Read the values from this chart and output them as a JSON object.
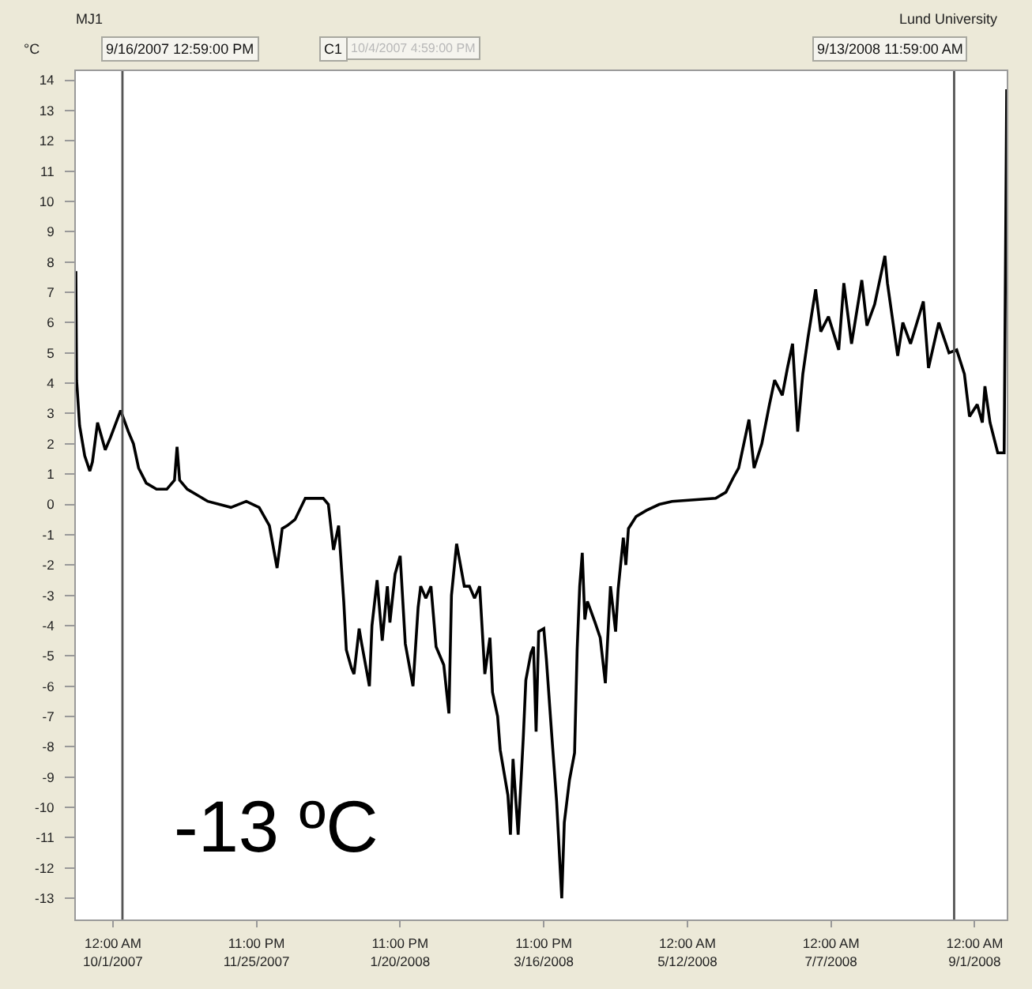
{
  "chart_data": {
    "type": "line",
    "title": "MJ1",
    "ylabel": "°C",
    "annotations": [
      "Lund University",
      "9/16/2007 12:59:00 PM",
      "C1",
      "10/4/2007 4:59:00 PM",
      "9/13/2008 11:59:00 AM",
      "-13 ºC"
    ],
    "x": [
      "2007-09-16T12:59",
      "2007-09-16T20:00",
      "2007-09-18",
      "2007-09-20",
      "2007-09-22",
      "2007-09-23",
      "2007-09-25",
      "2007-09-28",
      "2007-09-30",
      "2007-10-04",
      "2007-10-07",
      "2007-10-09",
      "2007-10-11",
      "2007-10-14",
      "2007-10-18",
      "2007-10-22",
      "2007-10-25",
      "2007-10-26",
      "2007-10-27",
      "2007-10-30",
      "2007-11-07",
      "2007-11-16",
      "2007-11-22",
      "2007-11-27",
      "2007-12-01",
      "2007-12-04",
      "2007-12-06",
      "2007-12-08",
      "2007-12-11",
      "2007-12-15",
      "2007-12-22",
      "2007-12-24",
      "2007-12-26",
      "2007-12-28",
      "2007-12-30",
      "2007-12-31",
      "2008-01-02",
      "2008-01-03",
      "2008-01-05",
      "2008-01-06",
      "2008-01-09",
      "2008-01-10",
      "2008-01-12",
      "2008-01-14",
      "2008-01-16",
      "2008-01-17",
      "2008-01-19",
      "2008-01-21",
      "2008-01-23",
      "2008-01-26",
      "2008-01-28",
      "2008-01-29",
      "2008-01-31",
      "2008-02-02",
      "2008-02-04",
      "2008-02-07",
      "2008-02-09",
      "2008-02-10",
      "2008-02-12",
      "2008-02-15",
      "2008-02-17",
      "2008-02-19",
      "2008-02-21",
      "2008-02-23",
      "2008-02-25",
      "2008-02-26",
      "2008-02-28",
      "2008-02-29",
      "2008-03-03",
      "2008-03-04",
      "2008-03-05",
      "2008-03-07",
      "2008-03-09",
      "2008-03-10",
      "2008-03-12",
      "2008-03-13",
      "2008-03-14",
      "2008-03-15",
      "2008-03-17",
      "2008-03-18",
      "2008-03-20",
      "2008-03-22",
      "2008-03-24",
      "2008-03-25",
      "2008-03-27",
      "2008-03-29",
      "2008-03-30",
      "2008-03-31",
      "2008-04-01",
      "2008-04-02",
      "2008-04-03",
      "2008-04-06",
      "2008-04-08",
      "2008-04-10",
      "2008-04-12",
      "2008-04-14",
      "2008-04-15",
      "2008-04-17",
      "2008-04-18",
      "2008-04-19",
      "2008-04-22",
      "2008-04-26",
      "2008-05-01",
      "2008-05-06",
      "2008-05-23",
      "2008-05-27",
      "2008-05-30",
      "2008-06-01",
      "2008-06-05",
      "2008-06-07",
      "2008-06-10",
      "2008-06-13",
      "2008-06-15",
      "2008-06-18",
      "2008-06-20",
      "2008-06-22",
      "2008-06-24",
      "2008-06-26",
      "2008-06-28",
      "2008-07-01",
      "2008-07-03",
      "2008-07-06",
      "2008-07-10",
      "2008-07-12",
      "2008-07-15",
      "2008-07-19",
      "2008-07-21",
      "2008-07-24",
      "2008-07-28",
      "2008-07-29",
      "2008-08-02",
      "2008-08-04",
      "2008-08-07",
      "2008-08-12",
      "2008-08-14",
      "2008-08-18",
      "2008-08-22",
      "2008-08-25",
      "2008-08-28",
      "2008-08-30",
      "2008-09-02",
      "2008-09-04",
      "2008-09-05",
      "2008-09-07",
      "2008-09-10",
      "2008-09-12T12:00",
      "2008-09-13T11:59"
    ],
    "series": [
      {
        "color": "#000000",
        "values": [
          7.7,
          4.1,
          2.6,
          1.6,
          1.1,
          1.4,
          2.7,
          1.8,
          2.2,
          3.1,
          2.4,
          2.0,
          1.2,
          0.7,
          0.5,
          0.5,
          0.8,
          1.9,
          0.8,
          0.5,
          0.1,
          -0.1,
          0.1,
          -0.1,
          -0.7,
          -2.1,
          -0.8,
          -0.7,
          -0.5,
          0.2,
          0.2,
          0.0,
          -1.5,
          -0.7,
          -3.2,
          -4.8,
          -5.4,
          -5.6,
          -4.1,
          -4.6,
          -6.0,
          -4.0,
          -2.5,
          -4.5,
          -2.7,
          -3.9,
          -2.3,
          -1.7,
          -4.6,
          -6.0,
          -3.4,
          -2.7,
          -3.1,
          -2.7,
          -4.7,
          -5.3,
          -6.9,
          -3.0,
          -1.3,
          -2.7,
          -2.7,
          -3.1,
          -2.7,
          -5.6,
          -4.4,
          -6.2,
          -7.0,
          -8.1,
          -9.6,
          -10.9,
          -8.4,
          -10.9,
          -7.7,
          -5.8,
          -4.9,
          -4.7,
          -7.5,
          -4.2,
          -4.1,
          -5.1,
          -7.5,
          -9.8,
          -13.0,
          -10.5,
          -9.1,
          -8.2,
          -4.8,
          -2.7,
          -1.6,
          -3.8,
          -3.2,
          -3.9,
          -4.4,
          -5.9,
          -2.7,
          -4.2,
          -2.8,
          -1.1,
          -2.0,
          -0.8,
          -0.4,
          -0.2,
          0.0,
          0.1,
          0.2,
          0.4,
          0.9,
          1.2,
          2.8,
          1.2,
          2.0,
          3.3,
          4.1,
          3.6,
          4.5,
          5.3,
          2.4,
          4.3,
          5.5,
          7.1,
          5.7,
          6.2,
          5.1,
          7.3,
          5.3,
          7.4,
          5.9,
          6.6,
          8.2,
          7.3,
          4.9,
          6.0,
          5.3,
          6.7,
          4.5,
          6.0,
          5.0,
          5.1,
          4.3,
          2.9,
          3.3,
          2.7,
          3.9,
          2.7,
          1.7,
          1.7,
          13.7
        ]
      }
    ],
    "xlim": [
      "2007-09-16T12:59",
      "2008-09-13T11:59"
    ],
    "xticks": [
      {
        "value": "2007-10-01T00:00",
        "label": "12:00 AM\n10/1/2007"
      },
      {
        "value": "2007-11-25T23:00",
        "label": "11:00 PM\n11/25/2007"
      },
      {
        "value": "2008-01-20T23:00",
        "label": "11:00 PM\n1/20/2008"
      },
      {
        "value": "2008-03-16T23:00",
        "label": "11:00 PM\n3/16/2008"
      },
      {
        "value": "2008-05-12T00:00",
        "label": "12:00 AM\n5/12/2008"
      },
      {
        "value": "2008-07-07T00:00",
        "label": "12:00 AM\n7/7/2008"
      },
      {
        "value": "2008-09-01T00:00",
        "label": "12:00 AM\n9/1/2008"
      }
    ],
    "ylim": [
      -13.7,
      14.3
    ],
    "yticks": [
      -13,
      -12,
      -11,
      -10,
      -9,
      -8,
      -7,
      -6,
      -5,
      -4,
      -3,
      -2,
      -1,
      0,
      1,
      2,
      3,
      4,
      5,
      6,
      7,
      8,
      9,
      10,
      11,
      12,
      13,
      14
    ],
    "ref_lines": [
      {
        "axis": "x",
        "value": "2007-10-04T16:59",
        "color": "#555555"
      },
      {
        "axis": "x",
        "value": "2008-08-24",
        "color": "#555555"
      }
    ],
    "grid": false,
    "marker": "none",
    "line_style": "solid"
  }
}
